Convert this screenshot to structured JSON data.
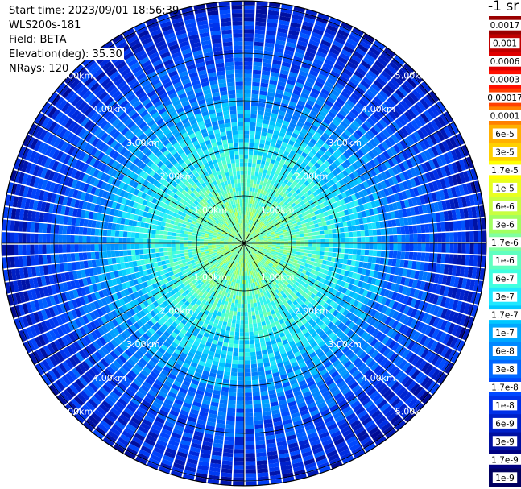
{
  "header": {
    "start_time": "Start time: 2023/09/01 18:56:39",
    "instrument": "WLS200s-181",
    "field": "Field: BETA",
    "elevation": "Elevation(deg): 35.30",
    "nrays": "NRays: 120"
  },
  "chart_data": {
    "type": "heatmap",
    "projection": "polar-ppi",
    "title": "",
    "field": "BETA",
    "n_rays": 120,
    "elevation_deg": 35.3,
    "range_rings_km": [
      1,
      2,
      3,
      4,
      5
    ],
    "ring_labels": [
      "1.00km",
      "2.00km",
      "3.00km",
      "4.00km",
      "5.00km"
    ],
    "max_range_km": 5.1,
    "radial_spoke_step_deg": 30,
    "colorbar": {
      "unit_label": "-1 sr",
      "ticks": [
        "0.0017",
        "0.001",
        "0.0006",
        "0.0003",
        "0.00017",
        "0.0001",
        "6e-5",
        "3e-5",
        "1.7e-5",
        "1e-5",
        "6e-6",
        "3e-6",
        "1.7e-6",
        "1e-6",
        "6e-7",
        "3e-7",
        "1.7e-7",
        "1e-7",
        "6e-8",
        "3e-8",
        "1.7e-8",
        "1e-8",
        "6e-9",
        "3e-9",
        "1.7e-9",
        "1e-9"
      ],
      "colors": [
        "#9a0000",
        "#c00000",
        "#e00000",
        "#ff1000",
        "#ff4000",
        "#ff8000",
        "#ffb000",
        "#ffd000",
        "#ffff00",
        "#e8ff20",
        "#c8ff40",
        "#a0ff60",
        "#80ffa0",
        "#60ffc0",
        "#40ffe0",
        "#20e8ff",
        "#00c8ff",
        "#00a8ff",
        "#0088ff",
        "#0068ff",
        "#0048ff",
        "#0030e8",
        "#0020c8",
        "#0010a0",
        "#000080",
        "#000060"
      ]
    },
    "radial_profile": [
      {
        "range_km": 0.5,
        "value": 1.7e-06
      },
      {
        "range_km": 1.0,
        "value": 1e-06
      },
      {
        "range_km": 1.5,
        "value": 6e-07
      },
      {
        "range_km": 2.0,
        "value": 3e-07
      },
      {
        "range_km": 2.5,
        "value": 1.7e-07
      },
      {
        "range_km": 3.0,
        "value": 6e-08
      },
      {
        "range_km": 3.5,
        "value": 3e-08
      },
      {
        "range_km": 4.0,
        "value": 1.7e-08
      },
      {
        "range_km": 4.5,
        "value": 1e-08
      },
      {
        "range_km": 5.0,
        "value": 6e-09
      }
    ]
  }
}
